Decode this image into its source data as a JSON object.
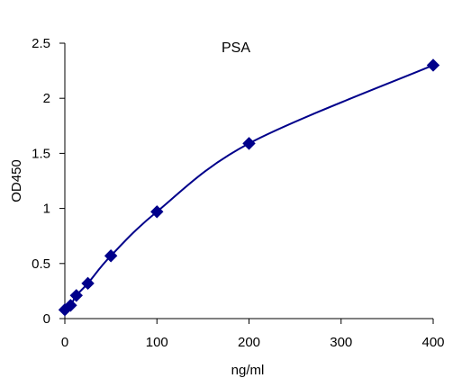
{
  "chart_data": {
    "type": "scatter",
    "title": "PSA",
    "xlabel": "ng/ml",
    "ylabel": "OD450",
    "xlim": [
      0,
      400
    ],
    "ylim": [
      0,
      2.5
    ],
    "x_ticks": [
      0,
      100,
      200,
      300,
      400
    ],
    "y_ticks": [
      0,
      0.5,
      1,
      1.5,
      2,
      2.5
    ],
    "x_tick_labels": [
      "0",
      "100",
      "200",
      "300",
      "400"
    ],
    "y_tick_labels": [
      "0",
      "0.5",
      "1",
      "1.5",
      "2",
      "2.5"
    ],
    "grid": false,
    "marker": "diamond",
    "trendline": "smooth curve",
    "color": "#00008B",
    "series": [
      {
        "x": [
          0,
          6.25,
          12.5,
          25,
          50,
          100,
          200,
          400
        ],
        "y": [
          0.08,
          0.12,
          0.21,
          0.32,
          0.57,
          0.97,
          1.59,
          2.3
        ]
      }
    ]
  }
}
